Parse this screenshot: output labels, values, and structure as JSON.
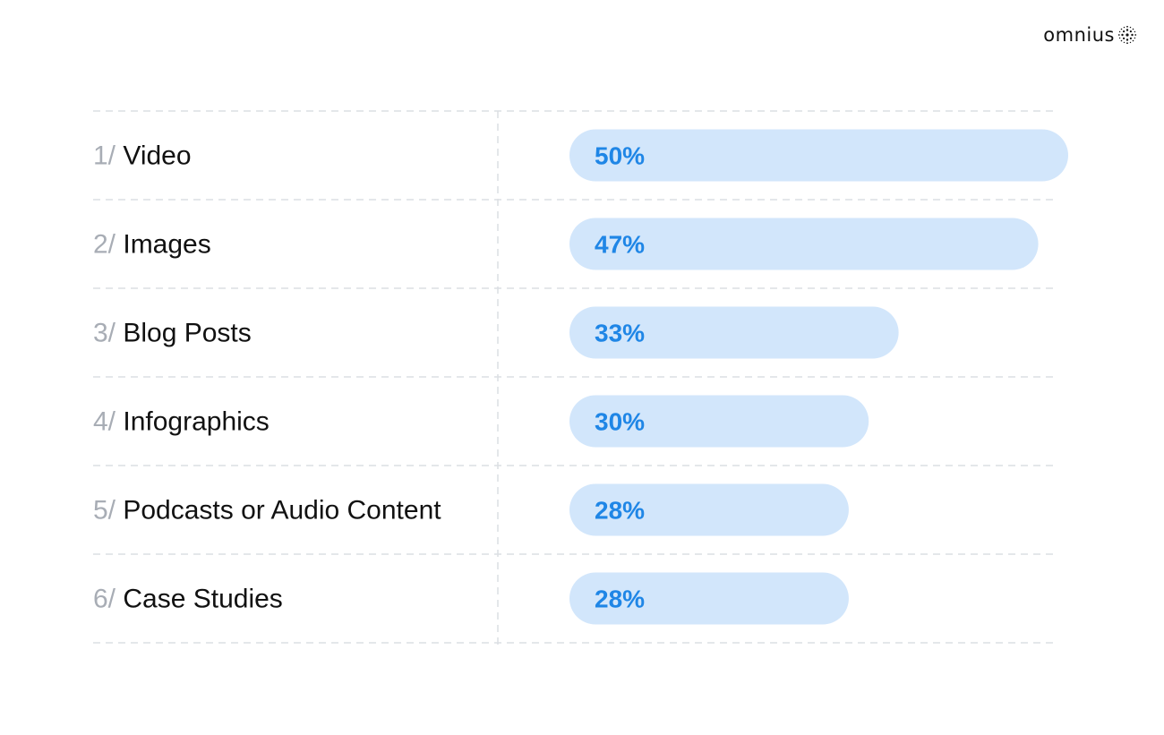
{
  "brand": {
    "name": "omnius",
    "logo_icon": "omnius-dotted-sphere-icon"
  },
  "colors": {
    "bar": "#d2e6fb",
    "value_text": "#1f86e6",
    "number_text": "#a8adb5",
    "label_text": "#111111",
    "grid": "#dcdfe3"
  },
  "chart_data": {
    "type": "bar",
    "orientation": "horizontal",
    "title": "",
    "xlabel": "",
    "ylabel": "",
    "xlim": [
      0,
      50
    ],
    "grid": true,
    "legend": "none",
    "number_suffix": "/",
    "value_suffix": "%",
    "categories": [
      "Video",
      "Images",
      "Blog Posts",
      "Infographics",
      "Podcasts or Audio Content",
      "Case Studies"
    ],
    "ranks": [
      "1",
      "2",
      "3",
      "4",
      "5",
      "6"
    ],
    "values": [
      50,
      47,
      33,
      30,
      28,
      28
    ]
  }
}
